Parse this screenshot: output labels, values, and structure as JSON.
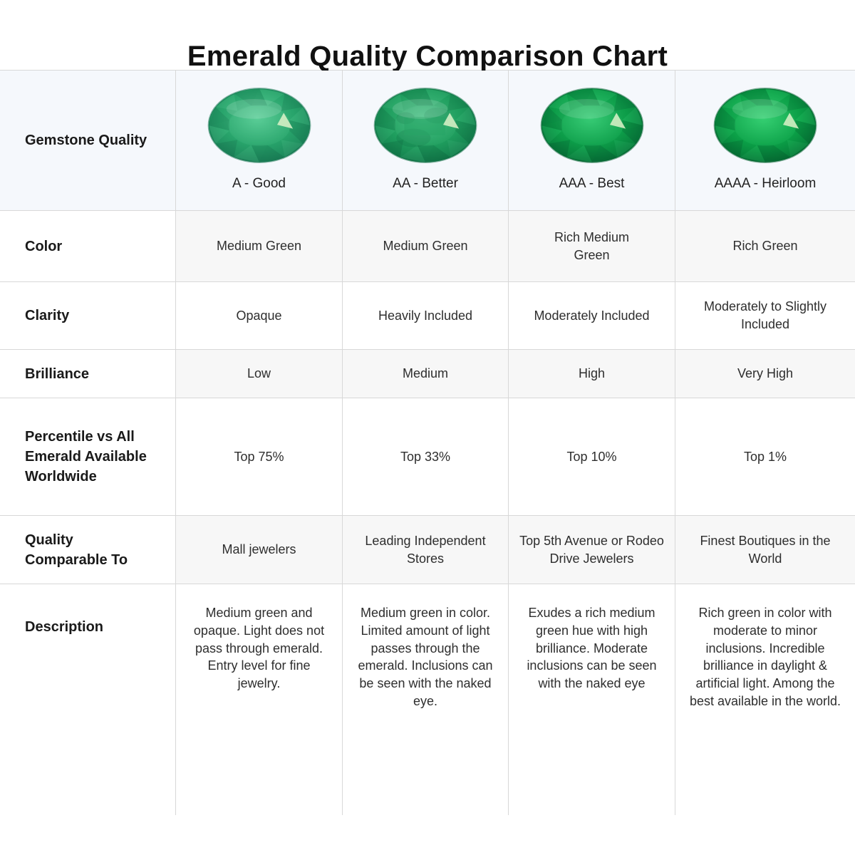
{
  "title": "Emerald Quality Comparison Chart",
  "table": {
    "corner_label": "Gemstone Quality",
    "columns": [
      {
        "grade": "A - Good"
      },
      {
        "grade": "AA - Better"
      },
      {
        "grade": "AAA - Best"
      },
      {
        "grade": "AAAA - Heirloom"
      }
    ],
    "rows": [
      {
        "label": "Color",
        "values": [
          "Medium Green",
          "Medium Green",
          "Rich Medium\nGreen",
          "Rich Green"
        ]
      },
      {
        "label": "Clarity",
        "values": [
          "Opaque",
          "Heavily Included",
          "Moderately Included",
          "Moderately to Slightly Included"
        ]
      },
      {
        "label": "Brilliance",
        "values": [
          "Low",
          "Medium",
          "High",
          "Very High"
        ]
      },
      {
        "label": "Percentile vs All Emerald Available Worldwide",
        "values": [
          "Top 75%",
          "Top 33%",
          "Top 10%",
          "Top 1%"
        ]
      },
      {
        "label": "Quality Comparable To",
        "values": [
          "Mall jewelers",
          "Leading Independent Stores",
          "Top 5th Avenue or Rodeo Drive Jewelers",
          "Finest Boutiques in the World"
        ]
      },
      {
        "label": "Description",
        "values": [
          "Medium green and opaque. Light does not pass through emerald. Entry level for fine jewelry.",
          "Medium green in color. Limited amount of light passes through the emerald. Inclusions can be seen with the naked eye.",
          "Exudes a rich medium green hue with high brilliance. Moderate inclusions can be seen with the naked eye",
          "Rich green in color with moderate to minor inclusions. Incredible brilliance in daylight & artificial light. Among the best available in the world."
        ]
      }
    ]
  },
  "gems": [
    {
      "name": "emerald-a-good",
      "light": "#5bce98",
      "base": "#28a46b",
      "dark": "#167450",
      "mottled": false
    },
    {
      "name": "emerald-aa-better",
      "light": "#4cc287",
      "base": "#1f9e5e",
      "dark": "#0e6b42",
      "mottled": true
    },
    {
      "name": "emerald-aaa-best",
      "light": "#38cc76",
      "base": "#0d9d49",
      "dark": "#056231",
      "mottled": false
    },
    {
      "name": "emerald-aaaa-heirloom",
      "light": "#36d073",
      "base": "#0ba047",
      "dark": "#04602e",
      "mottled": false
    }
  ],
  "colors": {
    "header_bg": "#f5f8fc",
    "stripe_bg": "#f7f7f7",
    "row_bg": "#ffffff",
    "border": "#d8d8d8",
    "title_text": "#111111",
    "label_text": "#1a1a1a",
    "value_text": "#2e2e2e",
    "highlight_facet": "#ddf2c9"
  }
}
